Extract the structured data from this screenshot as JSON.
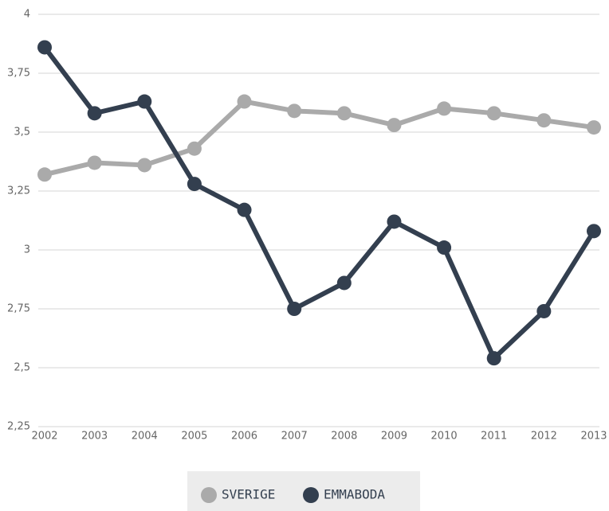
{
  "chart_data": {
    "type": "line",
    "x": [
      2002,
      2003,
      2004,
      2005,
      2006,
      2007,
      2008,
      2009,
      2010,
      2011,
      2012,
      2013
    ],
    "series": [
      {
        "name": "SVERIGE",
        "color": "#aaaaaa",
        "values": [
          3.32,
          3.37,
          3.36,
          3.43,
          3.63,
          3.59,
          3.58,
          3.53,
          3.6,
          3.58,
          3.55,
          3.52
        ]
      },
      {
        "name": "EMMABODA",
        "color": "#333f4f",
        "values": [
          3.86,
          3.58,
          3.63,
          3.28,
          3.17,
          2.75,
          2.86,
          3.12,
          3.01,
          2.54,
          2.74,
          3.08
        ]
      }
    ],
    "xlim": [
      2002,
      2013
    ],
    "xticks": [
      2002,
      2003,
      2004,
      2005,
      2006,
      2007,
      2008,
      2009,
      2010,
      2011,
      2012,
      2013
    ],
    "ylim": [
      2.25,
      4
    ],
    "yticks": [
      {
        "value": 2.25,
        "label": "2,25"
      },
      {
        "value": 2.5,
        "label": "2,5"
      },
      {
        "value": 2.75,
        "label": "2,75"
      },
      3,
      {
        "value": 3.25,
        "label": "3,25"
      },
      {
        "value": 3.5,
        "label": "3,5"
      },
      {
        "value": 3.75,
        "label": "3,75"
      },
      4
    ],
    "grid": true,
    "legend": "bottom"
  }
}
